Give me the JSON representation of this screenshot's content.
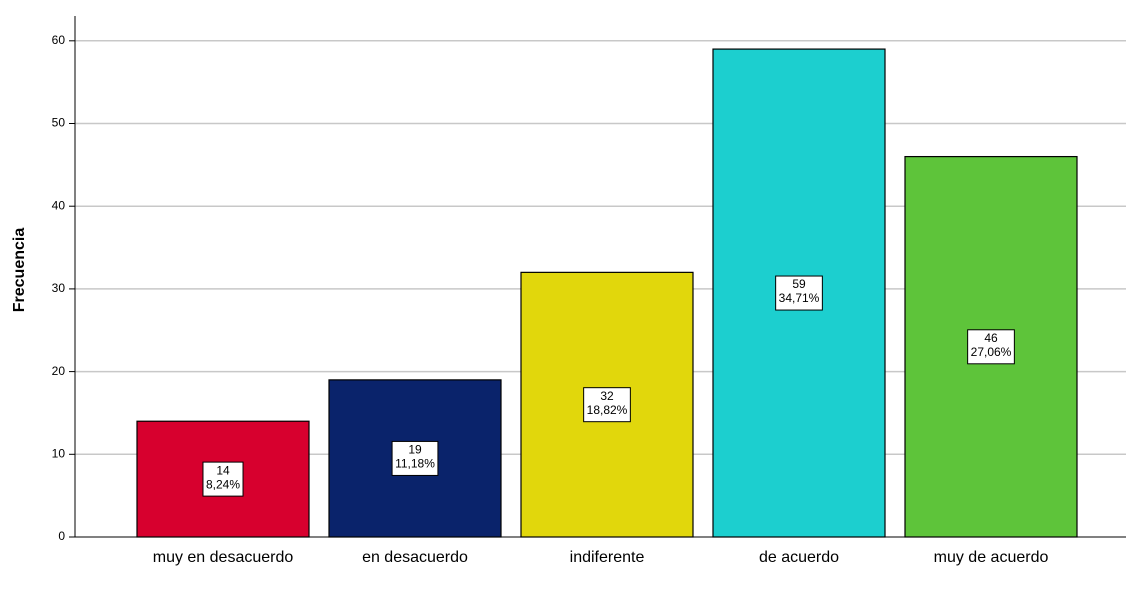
{
  "chart_data": {
    "type": "bar",
    "y_label": "Frecuencia",
    "categories": [
      "muy en desacuerdo",
      "en desacuerdo",
      "indiferente",
      "de acuerdo",
      "muy de acuerdo"
    ],
    "values": [
      14,
      19,
      32,
      59,
      46
    ],
    "percentage_labels": [
      "8,24%",
      "11,18%",
      "18,82%",
      "34,71%",
      "27,06%"
    ],
    "colors": [
      "#d7002e",
      "#0a236b",
      "#e1d70c",
      "#1ccfcf",
      "#5ec43a"
    ],
    "ylim": [
      0,
      63
    ],
    "yticks": [
      0,
      10,
      20,
      30,
      40,
      50,
      60
    ],
    "grid": true
  }
}
